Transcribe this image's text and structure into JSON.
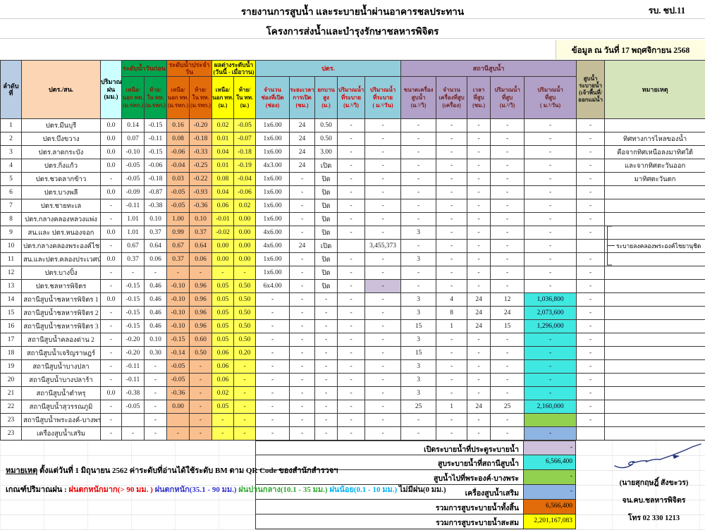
{
  "header_bar": {
    "title1": "รายงานการสูบน้ำ และระบายน้ำผ่านอาคารชลประทาน",
    "form_no": "รบ. ชป.11",
    "title2": "โครงการส่งน้ำและบำรุงรักษาชลหารพิจิตร",
    "date_line": "ข้อมูล ณ วันที่  17 พฤศจิกายน 2568"
  },
  "palette": {
    "salmon": "#FABF8F",
    "yellow_cell": "#FFFF55",
    "cyan": "#3FE8E0",
    "lavender": "#CCC0DA",
    "green": "#92D050",
    "blue": "#8DB4E2",
    "orange": "#E26B0A",
    "yellow": "#FFFF00",
    "grp_prev": "#00A550",
    "grp_day": "#E36C0A",
    "sect_ptr": "#92CDDC",
    "sect_station": "#B1A0C7",
    "col_drain": "#C4BD97",
    "col_remark": "#D6E4BC"
  },
  "header": {
    "col_no": "ลำดับ\nที่",
    "col_name": "ปตร./สน.",
    "col_rain": "ปริมาณ\nฝน\n(มม.)",
    "grp_prev": "ระดับน้ำวันก่อน",
    "grp_day": "ระดับน้ำประจำวัน",
    "grp_diff": "ผลต่างระดับน้ำ\n(วันนี้ - เมื่อวาน)",
    "grp_ptr": "ปตร.",
    "grp_station": "สถานีสูบน้ำ",
    "col_drain": "สูบน้ำ\nระบายน้ำ\n(เจ้าพื้นที่/\nออกแม่น้ำ",
    "col_remark": "หมายเหตุ",
    "sub": [
      "เหนือ/\nนอก ทท.\n(ม.รทก.)",
      "ท้าย/\nใน ทท.\n(ม.รทก.)",
      "เหนือ/\nนอก ทท.\n(ม.รทก.)",
      "ท้าย/\nใน ทท.\n(ม.รทก.)",
      "เหนือ/\nนอก ทท.\n(ม.)",
      "ท้าย/\nใน ทท.\n(ม.)",
      "จำนวน\nช่องที่เปิด\n(ช่อง)",
      "ระยะเวลา\nการเปิด\n(ชม.)",
      "ยกบาน\nสูง\n(ม.)",
      "ปริมาณน้ำ\nที่ระบาย\n(ม.³/วิ)",
      "ปริมาณน้ำ\nที่ระบาย\n( ม.³/วัน)",
      "ขนาดเครื่อง\nสูบน้ำ\n(ม.³/วิ)",
      "จำนวน\nเครื่องที่สูบ\n(เครื่อง)",
      "เวลา\nที่สูบ\n(ชม.)",
      "ปริมาณน้ำ\nที่สูบ\n(ม.³/วิ)",
      "ปริมาณน้ำ\nที่สูบ\n( ม.³/วัน)"
    ]
  },
  "table": {
    "bracket_remark": "ระบายลงคลองพระองค์ไชยานุชิด",
    "rows": [
      {
        "no": "1",
        "name": "ปตร.มีนบุรี",
        "cells": [
          "0.0",
          "0.14",
          "-0.15",
          "0.16",
          "-0.20",
          "0.02",
          "-0.05",
          "1x6.00",
          "24",
          "0.50",
          "-",
          "-",
          "-",
          "-",
          "-",
          "-",
          "-",
          "-",
          ""
        ]
      },
      {
        "no": "2",
        "name": "ปตร.บึงขวาง",
        "cells": [
          "0.0",
          "0.07",
          "-0.11",
          "0.08",
          "-0.18",
          "0.01",
          "-0.07",
          "1x6.00",
          "24",
          "0.50",
          "-",
          "-",
          "-",
          "-",
          "-",
          "-",
          "-",
          "-",
          "ทิศทางการไหลของน้ำ"
        ]
      },
      {
        "no": "3",
        "name": "ปตร.ลาดกระบัง",
        "cells": [
          "0.0",
          "-0.10",
          "-0.15",
          "-0.06",
          "-0.33",
          "0.04",
          "-0.18",
          "1x6.00",
          "24",
          "3.00",
          "-",
          "-",
          "-",
          "-",
          "-",
          "-",
          "-",
          "-",
          "คือจากทิศเหนือลงมาทิศใต้"
        ]
      },
      {
        "no": "4",
        "name": "ปตร.กิ่งแก้ว",
        "cells": [
          "0.0",
          "-0.05",
          "-0.06",
          "-0.04",
          "-0.25",
          "0.01",
          "-0.19",
          "4x3.00",
          "24",
          "เปิด",
          "-",
          "-",
          "-",
          "-",
          "-",
          "-",
          "-",
          "-",
          "และจากทิศตะวันออก"
        ]
      },
      {
        "no": "5",
        "name": "ปตร.ชวดลากข้าว",
        "cells": [
          "-",
          "-0.05",
          "-0.18",
          "0.03",
          "-0.22",
          "0.08",
          "-0.04",
          "1x6.00",
          "-",
          "ปิด",
          "-",
          "-",
          "-",
          "-",
          "-",
          "-",
          "-",
          "-",
          "มาทิศตะวันตก"
        ]
      },
      {
        "no": "6",
        "name": "ปตร.บางพลี",
        "cells": [
          "0.0",
          "-0.09",
          "-0.87",
          "-0.05",
          "-0.93",
          "0.04",
          "-0.06",
          "1x6.00",
          "-",
          "ปิด",
          "-",
          "-",
          "-",
          "-",
          "-",
          "-",
          "-",
          "-",
          ""
        ]
      },
      {
        "no": "7",
        "name": "ปตร.ชายทะเล",
        "cells": [
          "-",
          "-0.11",
          "-0.38",
          "-0.05",
          "-0.36",
          "0.06",
          "0.02",
          "1x6.00",
          "-",
          "ปิด",
          "-",
          "-",
          "-",
          "-",
          "-",
          "-",
          "-",
          "-",
          ""
        ]
      },
      {
        "no": "8",
        "name": "ปตร.กลางคลองหลวงแพ่ง",
        "cells": [
          "-",
          "1.01",
          "0.10",
          "1.00",
          "0.10",
          "-0.01",
          "0.00",
          "1x6.00",
          "-",
          "ปิด",
          "-",
          "-",
          "-",
          "-",
          "-",
          "-",
          "-",
          "-",
          ""
        ]
      },
      {
        "no": "9",
        "name": "สน.และ ปตร.หนองจอก",
        "cells": [
          "0.0",
          "1.01",
          "0.37",
          "0.99",
          "0.37",
          "-0.02",
          "0.00",
          "4x6.00",
          "-",
          "ปิด",
          "-",
          "-",
          "3",
          "-",
          "-",
          "-",
          "-",
          "-",
          ""
        ]
      },
      {
        "no": "10",
        "name": "ปตร.กลางคลองพระองค์ไชยานุชิด",
        "cells": [
          "-",
          "0.67",
          "0.64",
          "0.67",
          "0.64",
          "0.00",
          "0.00",
          "4x6.00",
          "24",
          "เปิด",
          "",
          "3,455,373",
          "-",
          "-",
          "-",
          "-",
          "-",
          "",
          ""
        ]
      },
      {
        "no": "11",
        "name": "สน.และปตร.คลองประเวศน์ฯ",
        "cells": [
          "0.0",
          "0.37",
          "0.06",
          "0.37",
          "0.06",
          "0.00",
          "0.00",
          "1x6.00",
          "-",
          "ปิด",
          "-",
          "-",
          "3",
          "-",
          "-",
          "-",
          "-",
          "-",
          ""
        ]
      },
      {
        "no": "12",
        "name": "ปตร.บางปิ้ง",
        "cells": [
          "-",
          "-",
          "-",
          "-",
          "-",
          "-",
          "-",
          "1x6.00",
          "-",
          "ปิด",
          "-",
          "-",
          "-",
          "-",
          "-",
          "-",
          "-",
          "-",
          ""
        ]
      },
      {
        "no": "13",
        "name": "ปตร.ชลหารพิจิตร",
        "cells": [
          "-",
          "-0.15",
          "0.46",
          "-0.10",
          "0.96",
          "0.05",
          "0.50",
          "6x4.00",
          "-",
          "ปิด",
          "-",
          "-",
          "-",
          "-",
          "-",
          "-",
          "-",
          "-",
          ""
        ],
        "hl": {
          "11": "lavender"
        }
      },
      {
        "no": "14",
        "name": "สถานีสูบน้ำชลหารพิจิตร 1",
        "cells": [
          "0.0",
          "-0.15",
          "0.46",
          "-0.10",
          "0.96",
          "0.05",
          "0.50",
          "-",
          "-",
          "-",
          "-",
          "-",
          "3",
          "4",
          "24",
          "12",
          "1,036,800",
          "-",
          ""
        ],
        "hl": {
          "16": "cyan"
        }
      },
      {
        "no": "15",
        "name": "สถานีสูบน้ำชลหารพิจิตร 2",
        "cells": [
          "-",
          "-0.15",
          "0.46",
          "-0.10",
          "0.96",
          "0.05",
          "0.50",
          "-",
          "-",
          "-",
          "-",
          "-",
          "3",
          "8",
          "24",
          "24",
          "2,073,600",
          "-",
          ""
        ],
        "hl": {
          "16": "cyan"
        }
      },
      {
        "no": "16",
        "name": "สถานีสูบน้ำชลหารพิจิตร 3",
        "cells": [
          "-",
          "-0.15",
          "0.46",
          "-0.10",
          "0.96",
          "0.05",
          "0.50",
          "-",
          "-",
          "-",
          "-",
          "-",
          "15",
          "1",
          "24",
          "15",
          "1,296,000",
          "-",
          ""
        ],
        "hl": {
          "16": "cyan"
        }
      },
      {
        "no": "17",
        "name": "สถานีสูบน้ำคลองด่าน 2",
        "cells": [
          "-",
          "-0.20",
          "0.10",
          "-0.15",
          "0.60",
          "0.05",
          "0.50",
          "-",
          "-",
          "-",
          "-",
          "-",
          "3",
          "-",
          "-",
          "-",
          "-",
          "-",
          ""
        ],
        "hl": {
          "16": "cyan"
        }
      },
      {
        "no": "18",
        "name": "สถานีสูบน้ำเจริญราษฎร์",
        "cells": [
          "-",
          "-0.20",
          "0.30",
          "-0.14",
          "0.50",
          "0.06",
          "0.20",
          "-",
          "-",
          "-",
          "-",
          "-",
          "15",
          "-",
          "-",
          "-",
          "-",
          "-",
          ""
        ],
        "hl": {
          "16": "cyan"
        }
      },
      {
        "no": "19",
        "name": "สถานีสูบน้ำบางปลา",
        "cells": [
          "-",
          "-0.11",
          "-",
          "-0.05",
          "-",
          "0.06",
          "-",
          "-",
          "-",
          "-",
          "-",
          "-",
          "3",
          "-",
          "-",
          "-",
          "-",
          "-",
          ""
        ],
        "hl": {
          "16": "cyan"
        }
      },
      {
        "no": "20",
        "name": "สถานีสูบน้ำบางปลาร้า",
        "cells": [
          "-",
          "-0.11",
          "-",
          "-0.05",
          "-",
          "0.06",
          "-",
          "-",
          "-",
          "-",
          "-",
          "-",
          "3",
          "-",
          "-",
          "-",
          "-",
          "-",
          ""
        ],
        "hl": {
          "16": "cyan"
        }
      },
      {
        "no": "21",
        "name": "สถานีสูบน้ำตำหรุ",
        "cells": [
          "0.0",
          "-0.38",
          "-",
          "-0.36",
          "-",
          "0.02",
          "-",
          "-",
          "-",
          "-",
          "-",
          "-",
          "3",
          "-",
          "-",
          "-",
          "-",
          "-",
          ""
        ],
        "hl": {
          "16": "cyan"
        }
      },
      {
        "no": "22",
        "name": "สถานีสูบน้ำสุวรรณภูมิ",
        "cells": [
          "-",
          "-0.05",
          "-",
          "0.00",
          "-",
          "0.05",
          "-",
          "-",
          "-",
          "-",
          "-",
          "-",
          "25",
          "1",
          "24",
          "25",
          "2,160,000",
          "-",
          ""
        ],
        "hl": {
          "16": "cyan"
        }
      },
      {
        "no": "23",
        "name": "สถานีสูบน้ำพระองค์-บางพระ",
        "cells": [
          "-",
          "",
          "-",
          "",
          "-",
          "-",
          "-",
          "-",
          "-",
          "-",
          "-",
          "-",
          "-",
          "-",
          "-",
          "-",
          "",
          "-",
          ""
        ],
        "hl": {
          "16": "green"
        }
      },
      {
        "no": "23",
        "name": "เครื่องสูบน้ำเสริม",
        "cells": [
          "-",
          "-",
          "-",
          "-",
          "-",
          "-",
          "-",
          "-",
          "-",
          "-",
          "-",
          "-",
          "-",
          "-",
          "-",
          "-",
          "-",
          "",
          ""
        ],
        "hl": {
          "16": "blue"
        }
      }
    ]
  },
  "summary": [
    {
      "label": "เปิดระบายน้ำที่ประตูระบายน้ำ",
      "value": "-",
      "color": "lavender"
    },
    {
      "label": "สูบระบายน้ำที่สถานีสูบน้ำ",
      "value": "6,566,400",
      "color": "cyan"
    },
    {
      "label": "สูบน้ำไปที่พระองค์-บางพระ",
      "value": "-",
      "color": "green"
    },
    {
      "label": "เครื่องสูบน้ำเสริม",
      "value": "-",
      "color": "blue"
    },
    {
      "label": "รวมการสูบระบายน้ำทั้งสิ้น",
      "value": "6,566,400",
      "color": "orange"
    },
    {
      "label": "รวมการสูบระบายน้ำสะสม",
      "value": "2,201,167,083",
      "color": "yellow"
    }
  ],
  "notes": {
    "heading": "หมายเหตุ",
    "line1": " ตั้งแต่วันที่ 1  มิถุนายน  2562  ค่าระดับที่อ่านได้ใช้ระดับ BM  ตาม QR Code  ของสำนักสำรวจฯ",
    "rain_label": "เกณฑ์ปริมาณฝน : ",
    "rain_criteria": [
      {
        "text": "ฝนตกหนักมาก(> 90 มม. ) ",
        "color": "#E80000"
      },
      {
        "text": "ฝนตกหนัก(35.1 - 90 มม.) ",
        "color": "#3333CC"
      },
      {
        "text": "ฝนปานกลาง(10.1 - 35 มม.) ",
        "color": "#2EA82E"
      },
      {
        "text": "ฝนน้อย(0.1 - 10 มม.) ",
        "color": "#00B0F0"
      },
      {
        "text": "ไม่มีฝน(0 มม.)",
        "color": "#111111"
      }
    ]
  },
  "signature": {
    "name": "(นายสุกฤษฎิ์  สังขะวร)",
    "org": "จน.คบ.ชลหารพิจิตร",
    "tel": "โทร  02 330 1213"
  }
}
